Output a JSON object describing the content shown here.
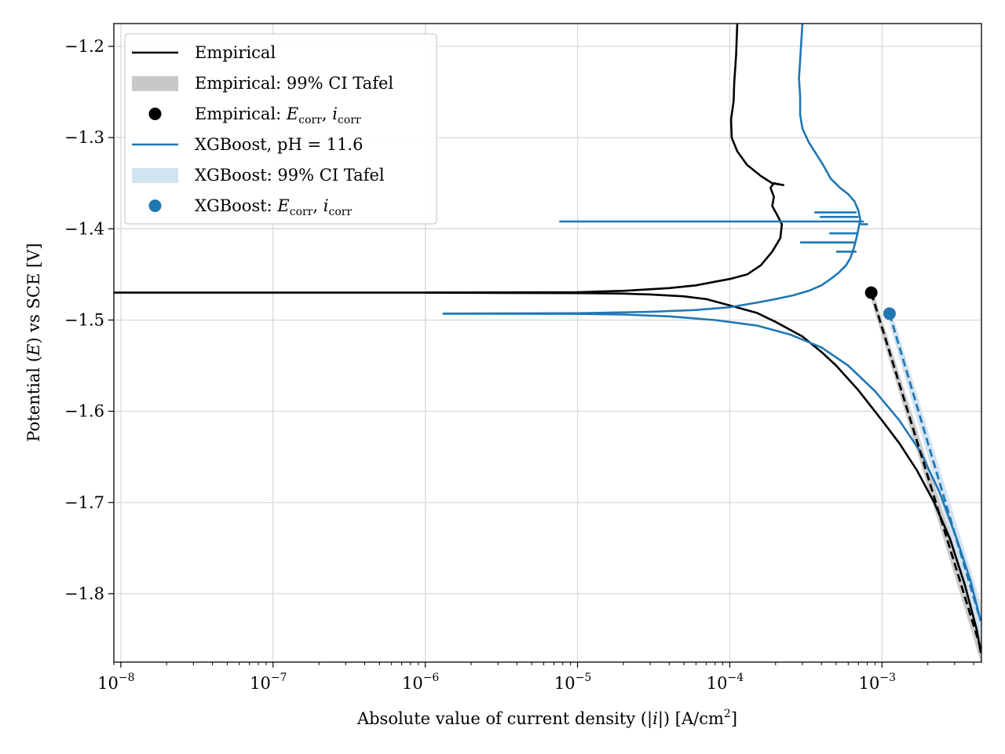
{
  "chart_data": {
    "type": "line",
    "xscale": "log",
    "xlim": [
      9e-09,
      0.0045
    ],
    "ylim": [
      -1.875,
      -1.175
    ],
    "grid": true,
    "xlabel": "Absolute value of current density (|i|) [A/cm²]",
    "ylabel": "Potential (E) vs SCE [V]",
    "xticks": [
      {
        "value": 1e-08,
        "base": "10",
        "exp": "−8"
      },
      {
        "value": 1e-07,
        "base": "10",
        "exp": "−7"
      },
      {
        "value": 1e-06,
        "base": "10",
        "exp": "−6"
      },
      {
        "value": 1e-05,
        "base": "10",
        "exp": "−5"
      },
      {
        "value": 0.0001,
        "base": "10",
        "exp": "−4"
      },
      {
        "value": 0.001,
        "base": "10",
        "exp": "−3"
      }
    ],
    "yticks": [
      {
        "value": -1.2,
        "label": "−1.2"
      },
      {
        "value": -1.3,
        "label": "−1.3"
      },
      {
        "value": -1.4,
        "label": "−1.4"
      },
      {
        "value": -1.5,
        "label": "−1.5"
      },
      {
        "value": -1.6,
        "label": "−1.6"
      },
      {
        "value": -1.7,
        "label": "−1.7"
      },
      {
        "value": -1.8,
        "label": "−1.8"
      }
    ],
    "legend_position": "top-left",
    "legend": [
      {
        "label": "Empirical",
        "kind": "line",
        "color": "#000000"
      },
      {
        "label": "Empirical: 99% CI Tafel",
        "kind": "band",
        "color": "#c8c8c8"
      },
      {
        "label": "Empirical: E_corr, i_corr",
        "kind": "marker",
        "color": "#000000",
        "math_main": "E",
        "math_sub": "corr",
        "math_main2": "i",
        "math_sub2": "corr",
        "prefix": "Empirical: "
      },
      {
        "label": "XGBoost, pH = 11.6",
        "kind": "line",
        "color": "#1f77b4"
      },
      {
        "label": "XGBoost: 99% CI Tafel",
        "kind": "band",
        "color": "#d2e3f1"
      },
      {
        "label": "XGBoost: E_corr, i_corr",
        "kind": "marker",
        "color": "#1f77b4",
        "math_main": "E",
        "math_sub": "corr",
        "math_main2": "i",
        "math_sub2": "corr",
        "prefix": "XGBoost: "
      }
    ],
    "series": [
      {
        "name": "Empirical",
        "color": "#000000",
        "segments": [
          [
            [
              9e-09,
              -1.47
            ],
            [
              1e-06,
              -1.47
            ],
            [
              1e-05,
              -1.4705
            ],
            [
              2e-05,
              -1.471
            ],
            [
              3e-05,
              -1.472
            ],
            [
              5e-05,
              -1.474
            ],
            [
              7e-05,
              -1.477
            ],
            [
              0.0001,
              -1.484
            ],
            [
              0.00015,
              -1.492
            ],
            [
              0.0002,
              -1.502
            ],
            [
              0.0003,
              -1.518
            ],
            [
              0.0004,
              -1.535
            ],
            [
              0.0005,
              -1.55
            ],
            [
              0.0007,
              -1.577
            ],
            [
              0.001,
              -1.61
            ],
            [
              0.0013,
              -1.635
            ],
            [
              0.0017,
              -1.665
            ],
            [
              0.0022,
              -1.7
            ],
            [
              0.0028,
              -1.74
            ],
            [
              0.0035,
              -1.79
            ],
            [
              0.0042,
              -1.84
            ],
            [
              0.00445,
              -1.865
            ]
          ],
          [
            [
              1e-06,
              -1.47
            ],
            [
              1e-05,
              -1.4695
            ],
            [
              2e-05,
              -1.468
            ],
            [
              4e-05,
              -1.465
            ],
            [
              6e-05,
              -1.462
            ],
            [
              8e-05,
              -1.458
            ],
            [
              0.0001,
              -1.455
            ],
            [
              0.00013,
              -1.45
            ],
            [
              0.00016,
              -1.44
            ],
            [
              0.00019,
              -1.425
            ],
            [
              0.000215,
              -1.41
            ],
            [
              0.00022,
              -1.395
            ],
            [
              0.000205,
              -1.385
            ],
            [
              0.00019,
              -1.375
            ],
            [
              0.000195,
              -1.365
            ],
            [
              0.000185,
              -1.355
            ],
            [
              0.000195,
              -1.35
            ],
            [
              0.000225,
              -1.352
            ],
            [
              0.00019,
              -1.35
            ],
            [
              0.00016,
              -1.342
            ],
            [
              0.00013,
              -1.33
            ],
            [
              0.000112,
              -1.315
            ],
            [
              0.000103,
              -1.3
            ],
            [
              0.000102,
              -1.28
            ],
            [
              0.000106,
              -1.26
            ],
            [
              0.000107,
              -1.24
            ],
            [
              0.00011,
              -1.21
            ],
            [
              0.000112,
              -1.175
            ]
          ]
        ]
      },
      {
        "name": "XGBoost, pH = 11.6",
        "color": "#1f77b4",
        "segments": [
          [
            [
              1.3e-06,
              -1.493
            ],
            [
              1e-05,
              -1.4932
            ],
            [
              2e-05,
              -1.494
            ],
            [
              4e-05,
              -1.496
            ],
            [
              8e-05,
              -1.5
            ],
            [
              0.00015,
              -1.506
            ],
            [
              0.00025,
              -1.516
            ],
            [
              0.0004,
              -1.53
            ],
            [
              0.0006,
              -1.55
            ],
            [
              0.0009,
              -1.578
            ],
            [
              0.0013,
              -1.61
            ],
            [
              0.0018,
              -1.645
            ],
            [
              0.0024,
              -1.69
            ],
            [
              0.0031,
              -1.74
            ],
            [
              0.0038,
              -1.785
            ],
            [
              0.00445,
              -1.83
            ]
          ],
          [
            [
              1.3e-06,
              -1.493
            ],
            [
              1e-05,
              -1.4925
            ],
            [
              3e-05,
              -1.491
            ],
            [
              6e-05,
              -1.489
            ],
            [
              0.0001,
              -1.486
            ],
            [
              0.00015,
              -1.481
            ],
            [
              0.0002,
              -1.477
            ],
            [
              0.00026,
              -1.473
            ],
            [
              0.00033,
              -1.468
            ],
            [
              0.0004,
              -1.462
            ],
            [
              0.00046,
              -1.455
            ],
            [
              0.00052,
              -1.448
            ],
            [
              0.00058,
              -1.44
            ],
            [
              0.00062,
              -1.432
            ],
            [
              0.00065,
              -1.422
            ],
            [
              0.00068,
              -1.41
            ],
            [
              0.0007,
              -1.4
            ],
            [
              0.00072,
              -1.39
            ],
            [
              0.0007,
              -1.38
            ],
            [
              0.00066,
              -1.37
            ],
            [
              0.0006,
              -1.362
            ],
            [
              0.00053,
              -1.355
            ],
            [
              0.00046,
              -1.345
            ],
            [
              0.00041,
              -1.33
            ],
            [
              0.00037,
              -1.318
            ],
            [
              0.00033,
              -1.305
            ],
            [
              0.0003,
              -1.29
            ],
            [
              0.00029,
              -1.275
            ],
            [
              0.00029,
              -1.255
            ],
            [
              0.000285,
              -1.235
            ],
            [
              0.00029,
              -1.215
            ],
            [
              0.000295,
              -1.195
            ],
            [
              0.0003,
              -1.175
            ]
          ],
          [
            [
              7.6e-06,
              -1.392
            ],
            [
              0.00076,
              -1.392
            ]
          ],
          [
            [
              0.00029,
              -1.415
            ],
            [
              0.00066,
              -1.415
            ]
          ],
          [
            [
              0.00036,
              -1.382
            ],
            [
              0.00068,
              -1.382
            ]
          ],
          [
            [
              0.00039,
              -1.387
            ],
            [
              0.0007,
              -1.387
            ]
          ],
          [
            [
              0.00072,
              -1.395
            ],
            [
              0.00081,
              -1.395
            ]
          ],
          [
            [
              0.00045,
              -1.405
            ],
            [
              0.0007,
              -1.405
            ]
          ],
          [
            [
              0.0005,
              -1.425
            ],
            [
              0.00068,
              -1.425
            ]
          ]
        ]
      }
    ],
    "tafel_fits": [
      {
        "name": "Empirical Tafel",
        "color": "#000000",
        "band_color": "#c8c8c8",
        "line": [
          [
            0.00085,
            -1.47
          ],
          [
            0.00445,
            -1.86
          ]
        ],
        "band_upper": [
          [
            0.00088,
            -1.47
          ],
          [
            0.00445,
            -1.84
          ]
        ],
        "band_lower": [
          [
            0.00082,
            -1.47
          ],
          [
            0.00445,
            -1.875
          ]
        ]
      },
      {
        "name": "XGBoost Tafel",
        "color": "#1f77b4",
        "band_color": "#d2e3f1",
        "line": [
          [
            0.00112,
            -1.493
          ],
          [
            0.00445,
            -1.83
          ]
        ],
        "band_upper": [
          [
            0.00117,
            -1.493
          ],
          [
            0.00445,
            -1.81
          ]
        ],
        "band_lower": [
          [
            0.00107,
            -1.493
          ],
          [
            0.00445,
            -1.85
          ]
        ]
      }
    ],
    "corr_points": [
      {
        "name": "Empirical E_corr, i_corr",
        "x": 0.00085,
        "y": -1.47,
        "color": "#000000"
      },
      {
        "name": "XGBoost E_corr, i_corr",
        "x": 0.00112,
        "y": -1.493,
        "color": "#1f77b4"
      }
    ]
  },
  "axis_text": {
    "xlabel_main": "Absolute value of current density (|",
    "xlabel_i": "i",
    "xlabel_tail": "|) [A/cm",
    "xlabel_sup": "2",
    "xlabel_end": "]",
    "ylabel_main": "Potential (",
    "ylabel_e": "E",
    "ylabel_tail": ") vs SCE [V]"
  }
}
